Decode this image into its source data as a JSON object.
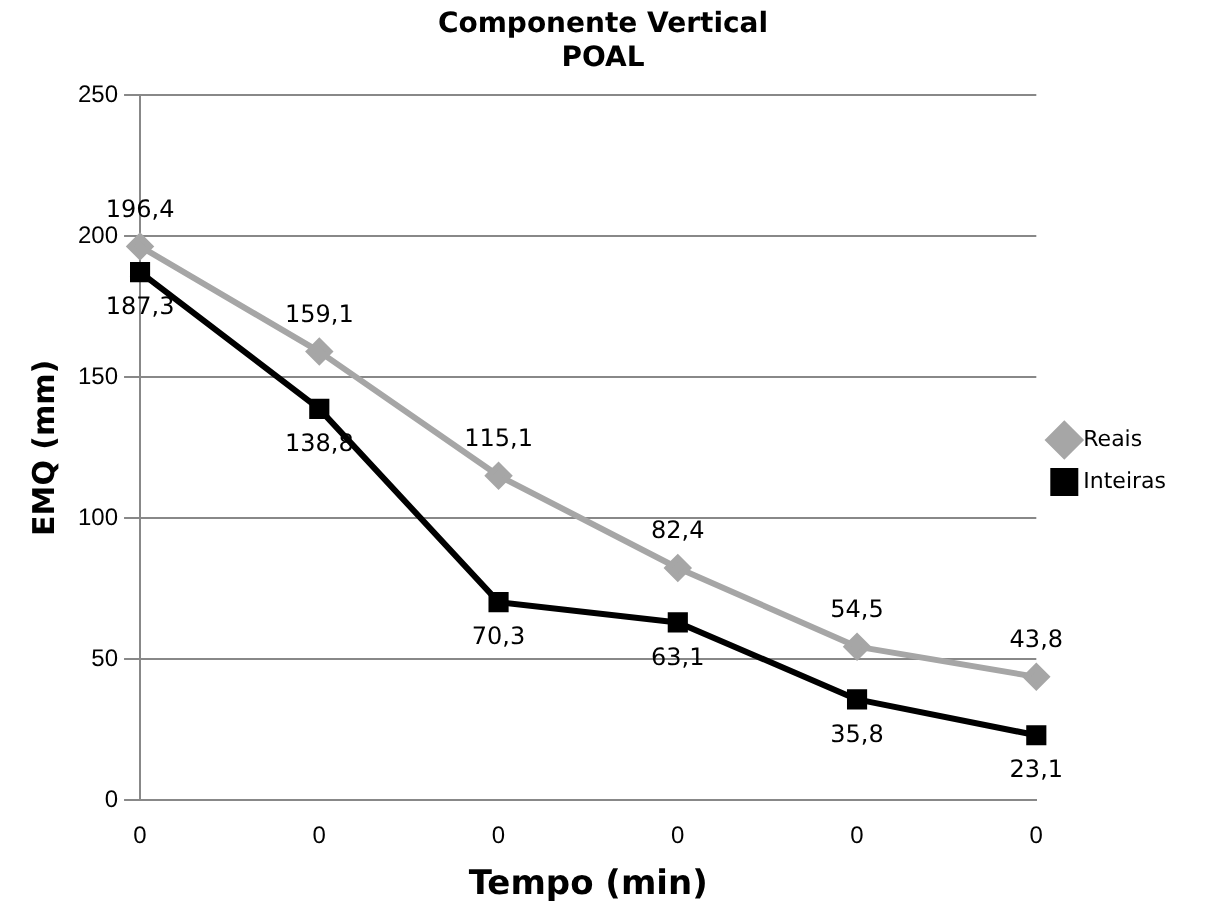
{
  "chart_data": {
    "type": "line",
    "title": "Componente Vertical\nPOAL",
    "xlabel": "Tempo (min)",
    "ylabel": "EMQ (mm)",
    "categories": [
      "0",
      "0",
      "0",
      "0",
      "0",
      "0"
    ],
    "series": [
      {
        "name": "Reais",
        "color": "#a6a6a6",
        "marker": "diamond",
        "values": [
          196.4,
          159.1,
          115.1,
          82.4,
          54.5,
          43.8
        ],
        "value_labels": [
          "196,4",
          "159,1",
          "115,1",
          "82,4",
          "54,5",
          "43,8"
        ]
      },
      {
        "name": "Inteiras",
        "color": "#000000",
        "marker": "square",
        "values": [
          187.3,
          138.8,
          70.3,
          63.1,
          35.8,
          23.1
        ],
        "value_labels": [
          "187,3",
          "138,8",
          "70,3",
          "63,1",
          "35,8",
          "23,1"
        ]
      }
    ],
    "ylim": [
      0,
      250
    ],
    "yticks": [
      0,
      50,
      100,
      150,
      200,
      250
    ],
    "grid": "y",
    "legend": "right",
    "line_style": "solid"
  }
}
